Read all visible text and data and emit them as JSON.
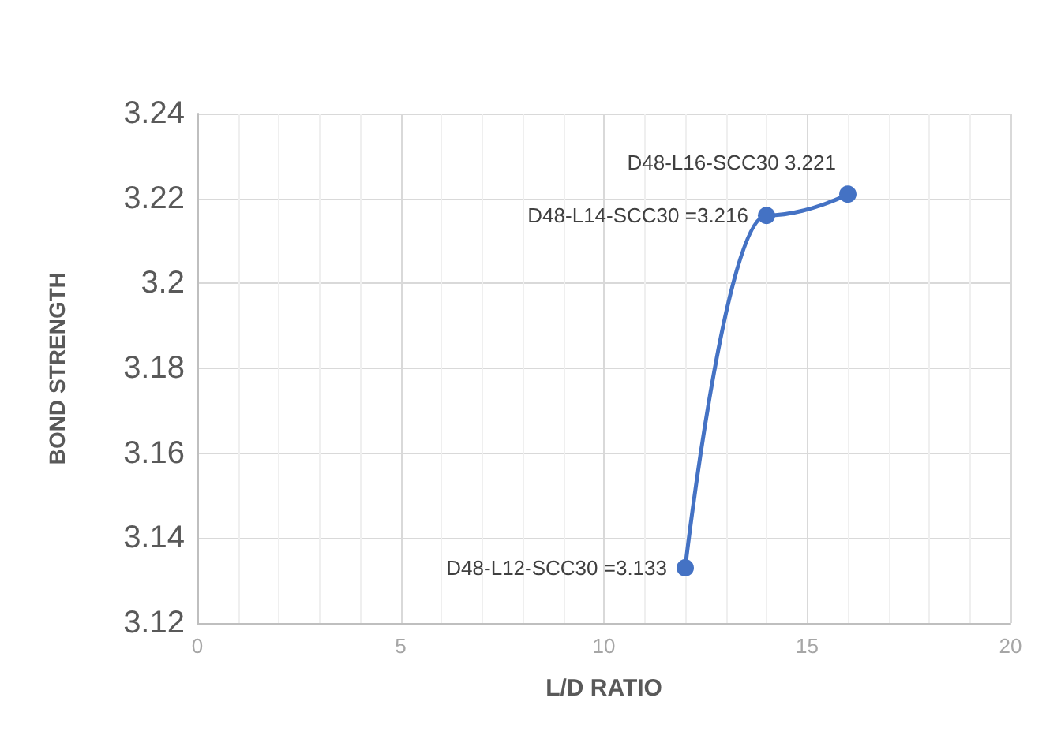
{
  "chart_data": {
    "type": "line",
    "xlabel": "L/D RATIO",
    "ylabel": "BOND STRENGTH",
    "x": [
      12,
      14,
      16
    ],
    "series": [
      {
        "color": "#4472c4",
        "values": [
          3.133,
          3.216,
          3.221
        ],
        "value_labels": [
          "D48-L12-SCC30 =3.133",
          "D48-L14-SCC30 =3.216",
          "D48-L16-SCC30 3.221"
        ]
      }
    ],
    "xlim": [
      0,
      20
    ],
    "xticks": [
      0,
      5,
      10,
      15,
      20
    ],
    "ylim": [
      3.12,
      3.24
    ],
    "yticks": [
      3.12,
      3.14,
      3.16,
      3.18,
      3.2,
      3.22,
      3.24
    ],
    "grid": true,
    "marker": "circle",
    "line_style": "solid"
  }
}
